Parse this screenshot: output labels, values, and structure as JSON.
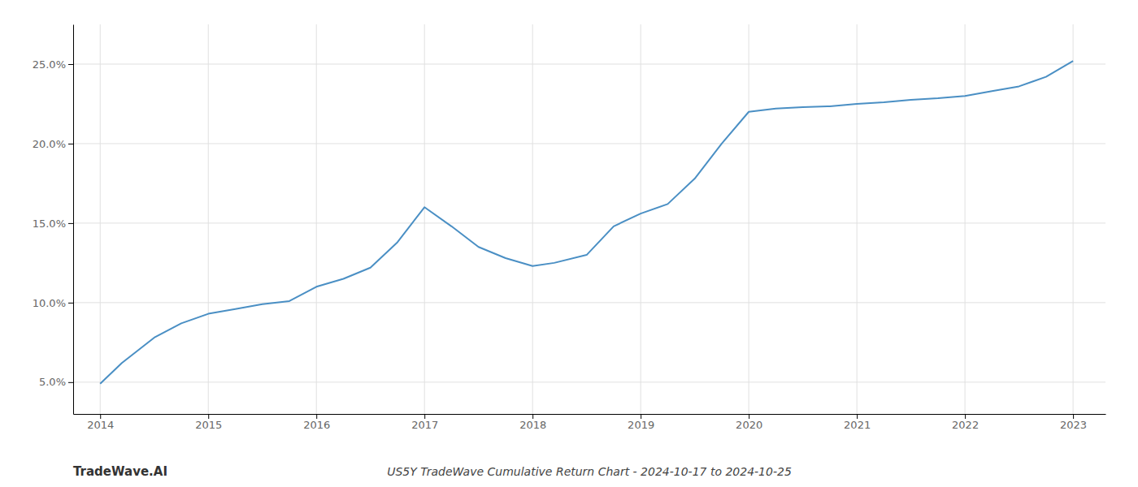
{
  "chart_data": {
    "type": "line",
    "title": "US5Y TradeWave Cumulative Return Chart - 2024-10-17 to 2024-10-25",
    "annotations": [
      "TradeWave.AI"
    ],
    "x": [
      2014.0,
      2014.2,
      2014.5,
      2014.75,
      2015.0,
      2015.25,
      2015.5,
      2015.75,
      2016.0,
      2016.25,
      2016.5,
      2016.75,
      2017.0,
      2017.25,
      2017.5,
      2017.75,
      2018.0,
      2018.2,
      2018.5,
      2018.75,
      2019.0,
      2019.25,
      2019.5,
      2019.75,
      2020.0,
      2020.25,
      2020.5,
      2020.75,
      2021.0,
      2021.25,
      2021.5,
      2021.75,
      2022.0,
      2022.25,
      2022.5,
      2022.75,
      2023.0
    ],
    "values": [
      4.9,
      6.2,
      7.8,
      8.7,
      9.3,
      9.6,
      9.9,
      10.1,
      11.0,
      11.5,
      12.2,
      13.8,
      16.0,
      14.8,
      13.5,
      12.8,
      12.3,
      12.5,
      13.0,
      14.8,
      15.6,
      16.2,
      17.8,
      20.0,
      22.0,
      22.2,
      22.3,
      22.35,
      22.5,
      22.6,
      22.75,
      22.85,
      23.0,
      23.3,
      23.6,
      24.2,
      25.2
    ],
    "color": "#4a8fc4",
    "xlim": [
      2013.75,
      2023.3
    ],
    "ylim": [
      3.0,
      27.5
    ],
    "xticks": [
      2014,
      2015,
      2016,
      2017,
      2018,
      2019,
      2020,
      2021,
      2022,
      2023
    ],
    "yticks": [
      {
        "value": 5.0,
        "label": "5.0%"
      },
      {
        "value": 10.0,
        "label": "10.0%"
      },
      {
        "value": 15.0,
        "label": "15.0%"
      },
      {
        "value": 20.0,
        "label": "20.0%"
      },
      {
        "value": 25.0,
        "label": "25.0%"
      }
    ],
    "grid": true
  }
}
